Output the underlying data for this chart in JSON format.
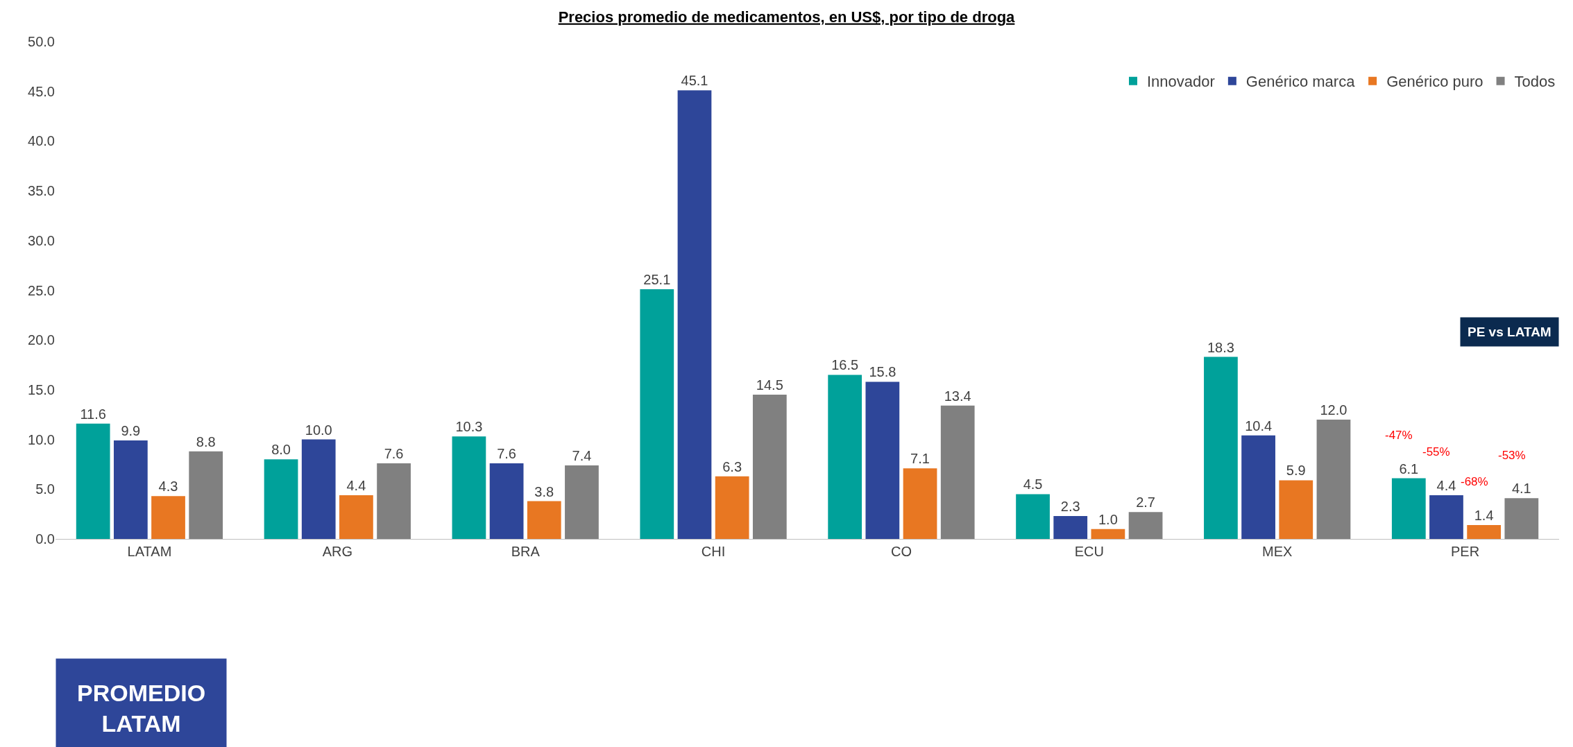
{
  "chart_data": {
    "type": "bar",
    "title": "Precios promedio de medicamentos, en US$, por tipo de droga",
    "categories": [
      "LATAM",
      "ARG",
      "BRA",
      "CHI",
      "CO",
      "ECU",
      "MEX",
      "PER"
    ],
    "series": [
      {
        "name": "Innovador",
        "color": "#00a19a",
        "values": [
          11.6,
          8.0,
          10.3,
          25.1,
          16.5,
          4.5,
          18.3,
          6.1
        ],
        "value_labels": [
          "11.6",
          "8.0",
          "10.3",
          "25.1",
          "16.5",
          "4.5",
          "18.3",
          "6.1"
        ]
      },
      {
        "name": "Genérico marca",
        "color": "#2e4699",
        "values": [
          9.9,
          10.0,
          7.6,
          45.1,
          15.8,
          2.3,
          10.4,
          4.4
        ],
        "value_labels": [
          "9.9",
          "10.0",
          "7.6",
          "45.1",
          "15.8",
          "2.3",
          "10.4",
          "4.4"
        ]
      },
      {
        "name": "Genérico puro",
        "color": "#e87722",
        "values": [
          4.3,
          4.4,
          3.8,
          6.3,
          7.1,
          1.0,
          5.9,
          1.4
        ],
        "value_labels": [
          "4.3",
          "4.4",
          "3.8",
          "6.3",
          "7.1",
          "1.0",
          "5.9",
          "1.4"
        ]
      },
      {
        "name": "Todos",
        "color": "#808080",
        "values": [
          8.8,
          7.6,
          7.4,
          14.5,
          13.4,
          2.7,
          12.0,
          4.1
        ],
        "value_labels": [
          "8.8",
          "7.6",
          "7.4",
          "14.5",
          "13.4",
          "2.7",
          "12.0",
          "4.1"
        ]
      }
    ],
    "ylim": [
      0,
      50
    ],
    "yticks": [
      {
        "value": 0,
        "label": "0.0"
      },
      {
        "value": 5,
        "label": "5.0"
      },
      {
        "value": 10,
        "label": "10.0"
      },
      {
        "value": 15,
        "label": "15.0"
      },
      {
        "value": 20,
        "label": "20.0"
      },
      {
        "value": 25,
        "label": "25.0"
      },
      {
        "value": 30,
        "label": "30.0"
      },
      {
        "value": 35,
        "label": "35.0"
      },
      {
        "value": 40,
        "label": "40.0"
      },
      {
        "value": 45,
        "label": "45.0"
      },
      {
        "value": 50,
        "label": "50.0"
      }
    ],
    "legend": "top right",
    "annotations": [
      "-47%",
      "-55%",
      "-68%",
      "-53%",
      "PE vs LATAM",
      "PROMEDIO LATAM"
    ]
  }
}
